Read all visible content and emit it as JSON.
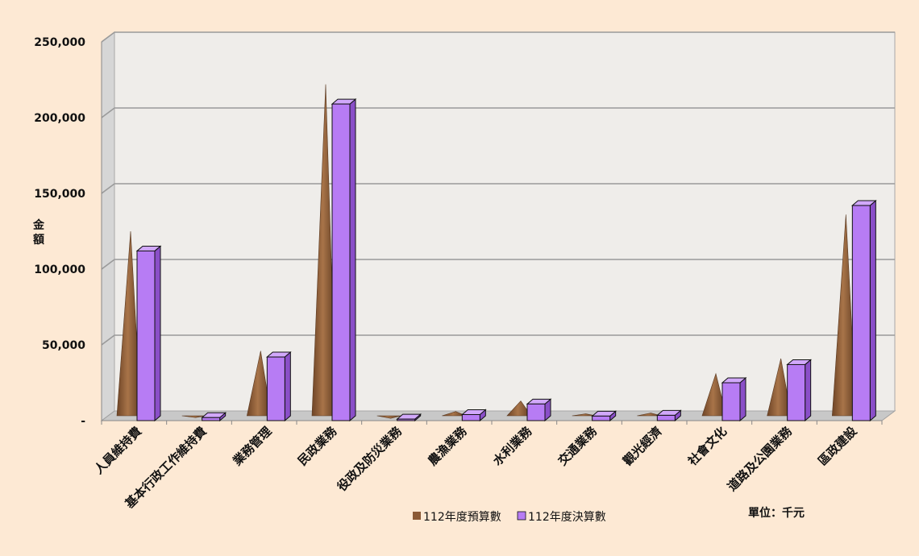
{
  "chart_data": {
    "type": "bar",
    "title": "",
    "xlabel": "",
    "ylabel": "金額",
    "unit_note": "單位：千元",
    "ylim": [
      0,
      250000
    ],
    "yticks": [
      {
        "value": 0,
        "label": "-"
      },
      {
        "value": 50000,
        "label": "50,000"
      },
      {
        "value": 100000,
        "label": "100,000"
      },
      {
        "value": 150000,
        "label": "150,000"
      },
      {
        "value": 200000,
        "label": "200,000"
      },
      {
        "value": 250000,
        "label": "250,000"
      }
    ],
    "grid": true,
    "legend_position": "bottom",
    "categories": [
      "人員維持費",
      "基本行政工作維持費",
      "業務管理",
      "民政業務",
      "役政及防災業務",
      "農漁業務",
      "水利業務",
      "交通業務",
      "觀光經濟",
      "社會文化",
      "道路及公園業務",
      "區政建設"
    ],
    "series": [
      {
        "name": "112年度預算數",
        "shape": "cone",
        "color": "#8b5a36",
        "values": [
          125000,
          2000,
          46000,
          222000,
          1500,
          6000,
          13000,
          4500,
          5000,
          31000,
          41000,
          136000
        ]
      },
      {
        "name": "112年度決算數",
        "shape": "box",
        "color": "#b77cf4",
        "values": [
          112000,
          2000,
          42000,
          209000,
          1000,
          4000,
          11000,
          3000,
          3500,
          25000,
          37000,
          142000
        ]
      }
    ]
  }
}
